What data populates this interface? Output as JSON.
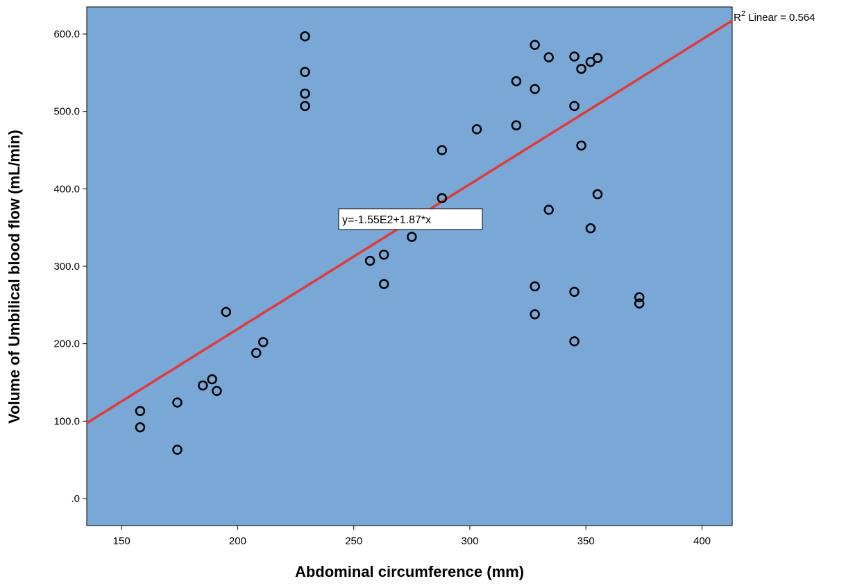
{
  "chart_data": {
    "type": "scatter",
    "title": "",
    "xlabel": "Abdominal circumference (mm)",
    "ylabel": "Volume of Umbilical blood flow (mL/min)",
    "xlim": [
      135,
      413
    ],
    "ylim": [
      -35,
      635
    ],
    "x_ticks": [
      150,
      200,
      250,
      300,
      350,
      400
    ],
    "x_tick_labels": [
      "150",
      "200",
      "250",
      "300",
      "350",
      "400"
    ],
    "y_ticks": [
      0,
      100,
      200,
      300,
      400,
      500,
      600
    ],
    "y_tick_labels": [
      ".0",
      "100.0",
      "200.0",
      "300.0",
      "400.0",
      "500.0",
      "600.0"
    ],
    "grid": false,
    "plot_background": "#7aa8d6",
    "point_color": "#000000",
    "fit_line_color": "#e03a3a",
    "fit_line": {
      "intercept": -155,
      "slope": 1.87,
      "equation_label": "y=-1.55E2+1.87*x",
      "r2_prefix": "R",
      "r2_sup": "2",
      "r2_suffix": " Linear = 0.564"
    },
    "points": [
      {
        "x": 158,
        "y": 113
      },
      {
        "x": 158,
        "y": 92
      },
      {
        "x": 174,
        "y": 124
      },
      {
        "x": 174,
        "y": 63
      },
      {
        "x": 185,
        "y": 146
      },
      {
        "x": 189,
        "y": 154
      },
      {
        "x": 191,
        "y": 139
      },
      {
        "x": 195,
        "y": 241
      },
      {
        "x": 208,
        "y": 188
      },
      {
        "x": 211,
        "y": 202
      },
      {
        "x": 229,
        "y": 597
      },
      {
        "x": 229,
        "y": 551
      },
      {
        "x": 229,
        "y": 523
      },
      {
        "x": 229,
        "y": 507
      },
      {
        "x": 257,
        "y": 307
      },
      {
        "x": 263,
        "y": 315
      },
      {
        "x": 263,
        "y": 277
      },
      {
        "x": 275,
        "y": 338
      },
      {
        "x": 288,
        "y": 450
      },
      {
        "x": 288,
        "y": 388
      },
      {
        "x": 303,
        "y": 477
      },
      {
        "x": 320,
        "y": 539
      },
      {
        "x": 320,
        "y": 482
      },
      {
        "x": 328,
        "y": 586
      },
      {
        "x": 328,
        "y": 529
      },
      {
        "x": 328,
        "y": 274
      },
      {
        "x": 328,
        "y": 238
      },
      {
        "x": 334,
        "y": 570
      },
      {
        "x": 334,
        "y": 373
      },
      {
        "x": 345,
        "y": 571
      },
      {
        "x": 345,
        "y": 507
      },
      {
        "x": 345,
        "y": 267
      },
      {
        "x": 345,
        "y": 203
      },
      {
        "x": 348,
        "y": 555
      },
      {
        "x": 348,
        "y": 456
      },
      {
        "x": 352,
        "y": 564
      },
      {
        "x": 352,
        "y": 349
      },
      {
        "x": 355,
        "y": 569
      },
      {
        "x": 355,
        "y": 393
      },
      {
        "x": 373,
        "y": 260
      },
      {
        "x": 373,
        "y": 252
      }
    ]
  }
}
